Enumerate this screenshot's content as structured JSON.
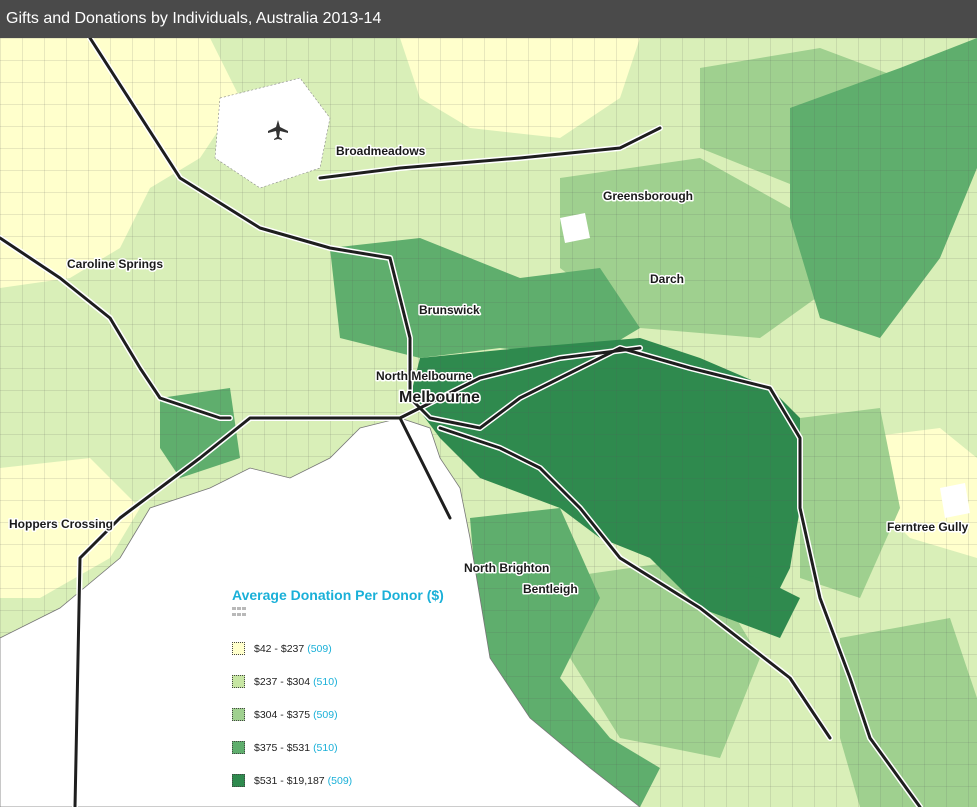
{
  "title": "Gifts and Donations by Individuals, Australia 2013-14",
  "colors": {
    "water": "#ffffff",
    "boundary": "#555555",
    "road": "#1e1e1e",
    "road_casing": "#ffffff"
  },
  "places": {
    "broadmeadows": "Broadmeadows",
    "greensborough": "Greensborough",
    "caroline_springs": "Caroline Springs",
    "darch": "Darch",
    "brunswick": "Brunswick",
    "north_melbourne": "North Melbourne",
    "melbourne": "Melbourne",
    "hoppers_crossing": "Hoppers Crossing",
    "north_brighton": "North Brighton",
    "bentleigh": "Bentleigh",
    "ferntree_gully": "Ferntree Gully"
  },
  "icons": {
    "airport": "airport-icon",
    "legend_toggle": "grid-icon"
  },
  "legend": {
    "title": "Average Donation Per Donor ($)",
    "items": [
      {
        "range": "$42 - $237",
        "count": "(509)",
        "color": "#ffffcc"
      },
      {
        "range": "$237 - $304",
        "count": "(510)",
        "color": "#c7e6a3"
      },
      {
        "range": "$304 - $375",
        "count": "(509)",
        "color": "#9fd08f"
      },
      {
        "range": "$375 - $531",
        "count": "(510)",
        "color": "#5fae6d"
      },
      {
        "range": "$531 - $19,187",
        "count": "(509)",
        "color": "#2f8a4e"
      }
    ]
  }
}
